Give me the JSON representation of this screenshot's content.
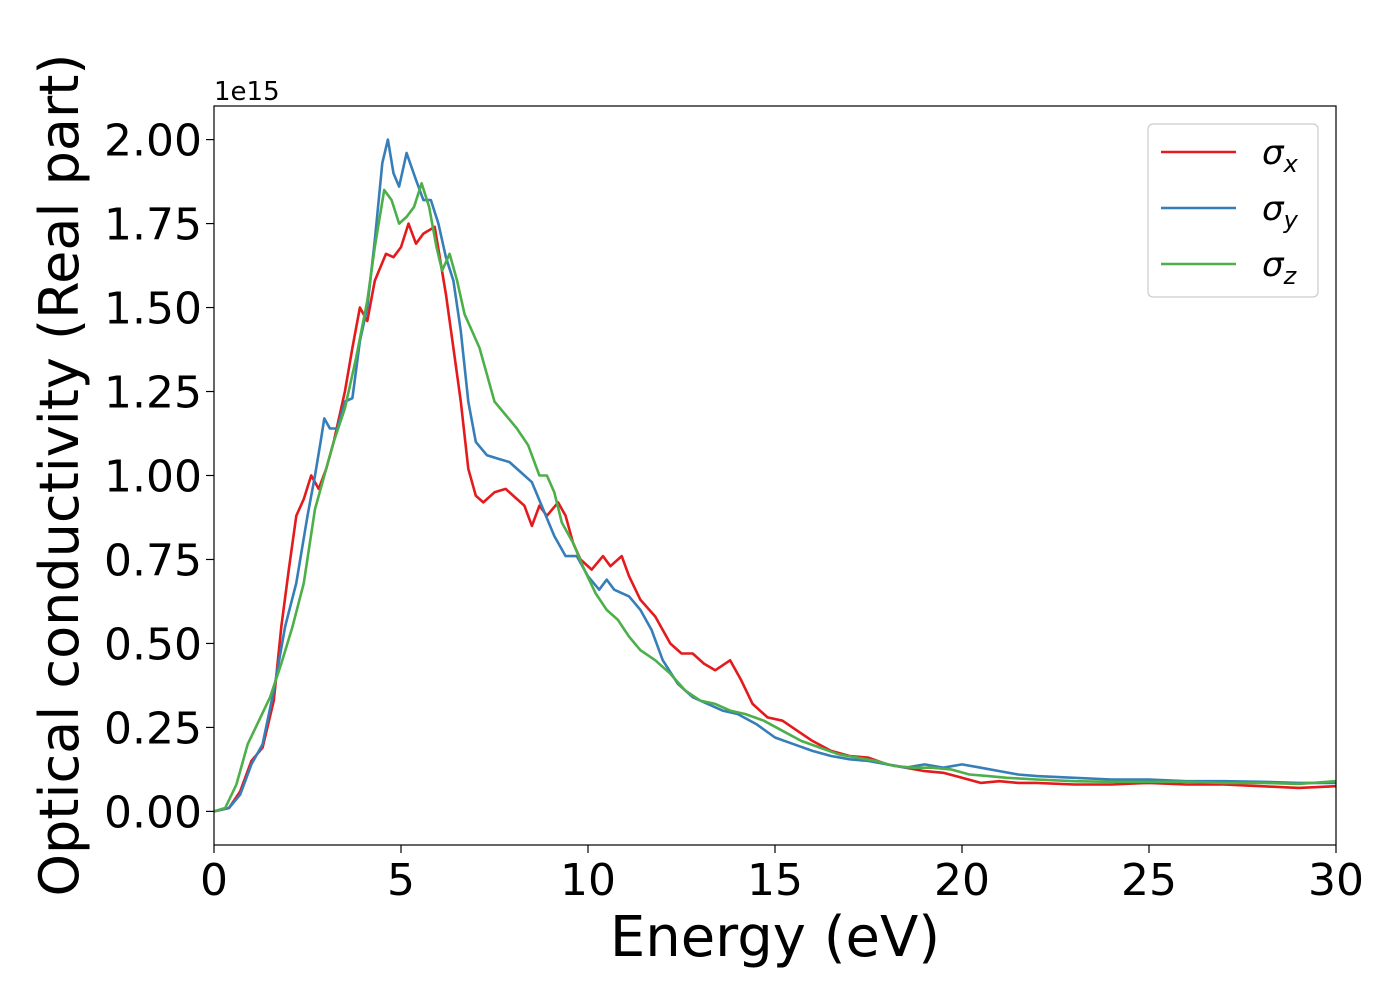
{
  "chart_data": {
    "type": "line",
    "xlabel": "Energy (eV)",
    "ylabel": "Optical conductivity (Real part)",
    "y_offset_label": "1e15",
    "xlim": [
      0,
      30
    ],
    "ylim": [
      -0.1,
      2.1
    ],
    "x_ticks": [
      0,
      5,
      10,
      15,
      20,
      25,
      30
    ],
    "x_tick_labels": [
      "0",
      "5",
      "10",
      "15",
      "20",
      "25",
      "30"
    ],
    "y_ticks": [
      0.0,
      0.25,
      0.5,
      0.75,
      1.0,
      1.25,
      1.5,
      1.75,
      2.0
    ],
    "y_tick_labels": [
      "0.00",
      "0.25",
      "0.50",
      "0.75",
      "1.00",
      "1.25",
      "1.50",
      "1.75",
      "2.00"
    ],
    "grid": false,
    "legend_position": "top-right",
    "series": [
      {
        "name": "σx",
        "legend_symbol": "σ",
        "legend_subscript": "x",
        "color": "#e41a1c",
        "points": [
          [
            0,
            0.0
          ],
          [
            0.4,
            0.01
          ],
          [
            0.7,
            0.06
          ],
          [
            1.0,
            0.15
          ],
          [
            1.3,
            0.19
          ],
          [
            1.6,
            0.33
          ],
          [
            1.8,
            0.55
          ],
          [
            2.0,
            0.72
          ],
          [
            2.2,
            0.88
          ],
          [
            2.4,
            0.93
          ],
          [
            2.6,
            1.0
          ],
          [
            2.8,
            0.96
          ],
          [
            3.0,
            1.02
          ],
          [
            3.2,
            1.1
          ],
          [
            3.5,
            1.25
          ],
          [
            3.7,
            1.38
          ],
          [
            3.9,
            1.5
          ],
          [
            4.1,
            1.46
          ],
          [
            4.3,
            1.58
          ],
          [
            4.6,
            1.66
          ],
          [
            4.8,
            1.65
          ],
          [
            5.0,
            1.68
          ],
          [
            5.2,
            1.75
          ],
          [
            5.4,
            1.69
          ],
          [
            5.6,
            1.72
          ],
          [
            5.9,
            1.74
          ],
          [
            6.2,
            1.54
          ],
          [
            6.4,
            1.38
          ],
          [
            6.6,
            1.22
          ],
          [
            6.8,
            1.02
          ],
          [
            7.0,
            0.94
          ],
          [
            7.2,
            0.92
          ],
          [
            7.5,
            0.95
          ],
          [
            7.8,
            0.96
          ],
          [
            8.1,
            0.93
          ],
          [
            8.3,
            0.91
          ],
          [
            8.5,
            0.85
          ],
          [
            8.7,
            0.91
          ],
          [
            8.9,
            0.88
          ],
          [
            9.2,
            0.92
          ],
          [
            9.4,
            0.88
          ],
          [
            9.6,
            0.8
          ],
          [
            9.8,
            0.75
          ],
          [
            10.1,
            0.72
          ],
          [
            10.4,
            0.76
          ],
          [
            10.6,
            0.73
          ],
          [
            10.9,
            0.76
          ],
          [
            11.1,
            0.7
          ],
          [
            11.4,
            0.63
          ],
          [
            11.8,
            0.58
          ],
          [
            12.2,
            0.5
          ],
          [
            12.5,
            0.47
          ],
          [
            12.8,
            0.47
          ],
          [
            13.1,
            0.44
          ],
          [
            13.4,
            0.42
          ],
          [
            13.8,
            0.45
          ],
          [
            14.1,
            0.39
          ],
          [
            14.4,
            0.32
          ],
          [
            14.8,
            0.28
          ],
          [
            15.2,
            0.27
          ],
          [
            15.6,
            0.24
          ],
          [
            16.0,
            0.21
          ],
          [
            16.5,
            0.18
          ],
          [
            17.0,
            0.165
          ],
          [
            17.5,
            0.16
          ],
          [
            18.0,
            0.14
          ],
          [
            18.5,
            0.13
          ],
          [
            19.0,
            0.12
          ],
          [
            19.5,
            0.115
          ],
          [
            20.0,
            0.1
          ],
          [
            20.5,
            0.085
          ],
          [
            21.0,
            0.09
          ],
          [
            21.5,
            0.085
          ],
          [
            22.0,
            0.085
          ],
          [
            23.0,
            0.08
          ],
          [
            24.0,
            0.08
          ],
          [
            25.0,
            0.085
          ],
          [
            26.0,
            0.08
          ],
          [
            27.0,
            0.08
          ],
          [
            28.0,
            0.075
          ],
          [
            29.0,
            0.07
          ],
          [
            30.0,
            0.075
          ]
        ]
      },
      {
        "name": "σy",
        "legend_symbol": "σ",
        "legend_subscript": "y",
        "color": "#377eb8",
        "points": [
          [
            0,
            0.0
          ],
          [
            0.4,
            0.01
          ],
          [
            0.7,
            0.05
          ],
          [
            1.0,
            0.14
          ],
          [
            1.3,
            0.2
          ],
          [
            1.6,
            0.36
          ],
          [
            1.9,
            0.55
          ],
          [
            2.2,
            0.68
          ],
          [
            2.5,
            0.88
          ],
          [
            2.7,
            1.0
          ],
          [
            2.85,
            1.1
          ],
          [
            2.95,
            1.17
          ],
          [
            3.1,
            1.14
          ],
          [
            3.3,
            1.14
          ],
          [
            3.5,
            1.22
          ],
          [
            3.7,
            1.23
          ],
          [
            3.9,
            1.4
          ],
          [
            4.1,
            1.5
          ],
          [
            4.3,
            1.7
          ],
          [
            4.5,
            1.93
          ],
          [
            4.65,
            2.0
          ],
          [
            4.8,
            1.9
          ],
          [
            4.95,
            1.86
          ],
          [
            5.15,
            1.96
          ],
          [
            5.4,
            1.88
          ],
          [
            5.6,
            1.82
          ],
          [
            5.8,
            1.82
          ],
          [
            6.0,
            1.75
          ],
          [
            6.2,
            1.65
          ],
          [
            6.4,
            1.58
          ],
          [
            6.6,
            1.43
          ],
          [
            6.8,
            1.22
          ],
          [
            7.0,
            1.1
          ],
          [
            7.3,
            1.06
          ],
          [
            7.6,
            1.05
          ],
          [
            7.9,
            1.04
          ],
          [
            8.2,
            1.01
          ],
          [
            8.5,
            0.98
          ],
          [
            8.8,
            0.9
          ],
          [
            9.1,
            0.82
          ],
          [
            9.4,
            0.76
          ],
          [
            9.7,
            0.76
          ],
          [
            10.0,
            0.7
          ],
          [
            10.3,
            0.66
          ],
          [
            10.5,
            0.69
          ],
          [
            10.7,
            0.66
          ],
          [
            11.1,
            0.64
          ],
          [
            11.4,
            0.6
          ],
          [
            11.7,
            0.54
          ],
          [
            12.0,
            0.45
          ],
          [
            12.4,
            0.38
          ],
          [
            12.8,
            0.34
          ],
          [
            13.2,
            0.32
          ],
          [
            13.6,
            0.3
          ],
          [
            14.0,
            0.29
          ],
          [
            14.5,
            0.26
          ],
          [
            15.0,
            0.22
          ],
          [
            15.5,
            0.2
          ],
          [
            16.0,
            0.18
          ],
          [
            16.5,
            0.165
          ],
          [
            17.0,
            0.155
          ],
          [
            17.5,
            0.15
          ],
          [
            18.0,
            0.14
          ],
          [
            18.5,
            0.13
          ],
          [
            19.0,
            0.14
          ],
          [
            19.5,
            0.13
          ],
          [
            20.0,
            0.14
          ],
          [
            20.5,
            0.13
          ],
          [
            21.0,
            0.12
          ],
          [
            21.5,
            0.11
          ],
          [
            22.0,
            0.105
          ],
          [
            23.0,
            0.1
          ],
          [
            24.0,
            0.095
          ],
          [
            25.0,
            0.095
          ],
          [
            26.0,
            0.09
          ],
          [
            27.0,
            0.09
          ],
          [
            28.0,
            0.088
          ],
          [
            29.0,
            0.085
          ],
          [
            30.0,
            0.085
          ]
        ]
      },
      {
        "name": "σz",
        "legend_symbol": "σ",
        "legend_subscript": "z",
        "color": "#4daf4a",
        "points": [
          [
            0,
            0.0
          ],
          [
            0.3,
            0.01
          ],
          [
            0.6,
            0.08
          ],
          [
            0.9,
            0.2
          ],
          [
            1.2,
            0.27
          ],
          [
            1.5,
            0.34
          ],
          [
            1.8,
            0.44
          ],
          [
            2.1,
            0.55
          ],
          [
            2.4,
            0.68
          ],
          [
            2.7,
            0.9
          ],
          [
            2.9,
            0.98
          ],
          [
            3.2,
            1.1
          ],
          [
            3.5,
            1.2
          ],
          [
            3.8,
            1.35
          ],
          [
            4.1,
            1.52
          ],
          [
            4.3,
            1.68
          ],
          [
            4.55,
            1.85
          ],
          [
            4.75,
            1.82
          ],
          [
            4.95,
            1.75
          ],
          [
            5.15,
            1.77
          ],
          [
            5.35,
            1.8
          ],
          [
            5.55,
            1.87
          ],
          [
            5.75,
            1.8
          ],
          [
            5.95,
            1.68
          ],
          [
            6.1,
            1.61
          ],
          [
            6.3,
            1.66
          ],
          [
            6.5,
            1.58
          ],
          [
            6.7,
            1.48
          ],
          [
            6.9,
            1.43
          ],
          [
            7.1,
            1.38
          ],
          [
            7.3,
            1.3
          ],
          [
            7.5,
            1.22
          ],
          [
            7.8,
            1.18
          ],
          [
            8.1,
            1.14
          ],
          [
            8.4,
            1.09
          ],
          [
            8.7,
            1.0
          ],
          [
            8.9,
            1.0
          ],
          [
            9.1,
            0.95
          ],
          [
            9.3,
            0.86
          ],
          [
            9.6,
            0.8
          ],
          [
            9.9,
            0.72
          ],
          [
            10.2,
            0.65
          ],
          [
            10.5,
            0.6
          ],
          [
            10.8,
            0.57
          ],
          [
            11.1,
            0.52
          ],
          [
            11.4,
            0.48
          ],
          [
            11.8,
            0.45
          ],
          [
            12.2,
            0.41
          ],
          [
            12.6,
            0.36
          ],
          [
            13.0,
            0.33
          ],
          [
            13.4,
            0.32
          ],
          [
            13.8,
            0.3
          ],
          [
            14.2,
            0.29
          ],
          [
            14.7,
            0.27
          ],
          [
            15.2,
            0.24
          ],
          [
            15.7,
            0.21
          ],
          [
            16.2,
            0.19
          ],
          [
            16.7,
            0.17
          ],
          [
            17.2,
            0.16
          ],
          [
            17.7,
            0.15
          ],
          [
            18.2,
            0.135
          ],
          [
            18.7,
            0.13
          ],
          [
            19.2,
            0.13
          ],
          [
            19.7,
            0.125
          ],
          [
            20.2,
            0.11
          ],
          [
            20.7,
            0.105
          ],
          [
            21.2,
            0.1
          ],
          [
            22.0,
            0.095
          ],
          [
            23.0,
            0.09
          ],
          [
            24.0,
            0.088
          ],
          [
            25.0,
            0.088
          ],
          [
            26.0,
            0.088
          ],
          [
            27.0,
            0.085
          ],
          [
            28.0,
            0.085
          ],
          [
            29.0,
            0.082
          ],
          [
            30.0,
            0.09
          ]
        ]
      }
    ]
  }
}
